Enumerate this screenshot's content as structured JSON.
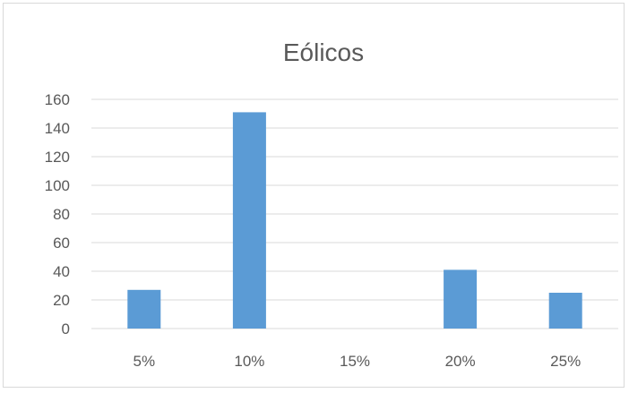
{
  "chart_data": {
    "type": "bar",
    "title": "Eólicos",
    "xlabel": "",
    "ylabel": "",
    "categories": [
      "5%",
      "10%",
      "15%",
      "20%",
      "25%"
    ],
    "values": [
      27,
      151,
      0,
      41,
      25
    ],
    "ylim": [
      0,
      160
    ],
    "yticks": [
      "0",
      "20",
      "40",
      "60",
      "80",
      "100",
      "120",
      "140",
      "160"
    ],
    "grid": true,
    "legend": "none",
    "bar_color": "#5b9bd5",
    "grid_color": "#d9d9d9",
    "text_color": "#595959"
  }
}
